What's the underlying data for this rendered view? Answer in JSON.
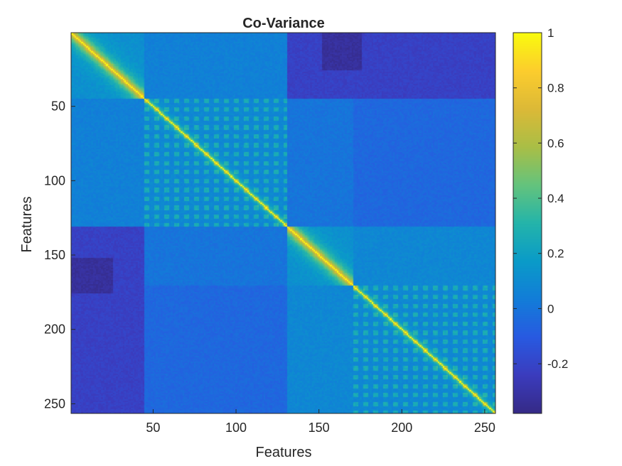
{
  "chart_data": {
    "type": "heatmap",
    "title": "Co-Variance",
    "xlabel": "Features",
    "ylabel": "Features",
    "size": 256,
    "xlim": [
      1,
      256
    ],
    "ylim": [
      1,
      256
    ],
    "y_reversed": true,
    "x_ticks": [
      50,
      100,
      150,
      200,
      250
    ],
    "y_ticks": [
      50,
      100,
      150,
      200,
      250
    ],
    "x_tick_labels": [
      "50",
      "100",
      "150",
      "200",
      "250"
    ],
    "y_tick_labels": [
      "50",
      "100",
      "150",
      "200",
      "250"
    ],
    "colormap": "parula",
    "clim": [
      -0.38,
      1
    ],
    "colorbar": {
      "position": "right",
      "ticks": [
        -0.2,
        0,
        0.2,
        0.4,
        0.6,
        0.8,
        1
      ],
      "tick_labels": [
        "-0.2",
        "0",
        "0.2",
        "0.4",
        "0.6",
        "0.8",
        "1"
      ]
    },
    "block_boundaries": [
      1,
      44,
      130,
      170,
      256
    ],
    "values_note_source": "matrix values approximated from visible block structure",
    "grid": false
  },
  "colors": {
    "parula_low": "#352a87",
    "parula_mid": "#1f8ad8",
    "parula_high": "#f9fb0e",
    "axis": "#262626"
  }
}
